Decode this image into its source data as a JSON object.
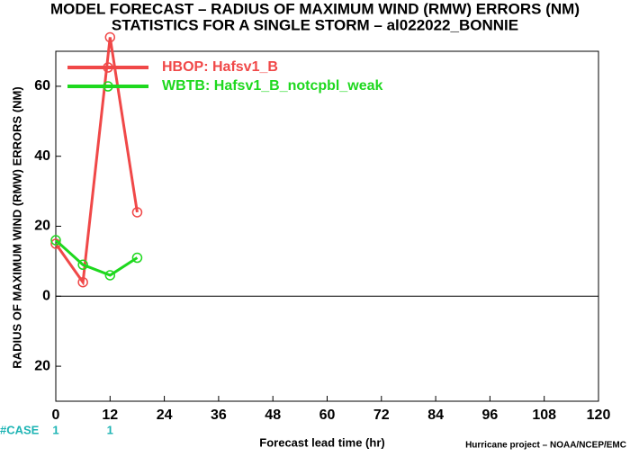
{
  "chart_data": {
    "type": "line",
    "title": "MODEL FORECAST – RADIUS OF MAXIMUM WIND (RMW) ERRORS (NM)",
    "subtitle": "STATISTICS FOR A SINGLE STORM – al022022_BONNIE",
    "xlabel": "Forecast lead time (hr)",
    "ylabel": "RADIUS OF MAXIMUM WIND (RMW) ERRORS (NM)",
    "credit": "Hurricane project – NOAA/NCEP/EMC",
    "x": [
      0,
      6,
      12,
      18
    ],
    "series": [
      {
        "name": "HBOP: Hafsv1_B",
        "color": "#f04848",
        "values": [
          15,
          4,
          74,
          24
        ]
      },
      {
        "name": "WBTB: Hafsv1_B_notcpbl_weak",
        "color": "#1ed81e",
        "values": [
          16,
          9,
          6,
          11
        ]
      }
    ],
    "xlim": [
      0,
      120
    ],
    "xticks": [
      0,
      12,
      24,
      36,
      48,
      60,
      72,
      84,
      96,
      108,
      120
    ],
    "ylim": [
      -30,
      70
    ],
    "yticks": [
      {
        "value": -20,
        "label": "20"
      },
      0,
      20,
      40,
      60
    ],
    "zero_line": true,
    "legend": "upper left",
    "case_label": "#CASE",
    "case_color": "#1eb4b4",
    "cases": {
      "x": [
        0,
        12
      ],
      "counts": [
        1,
        1
      ]
    }
  }
}
